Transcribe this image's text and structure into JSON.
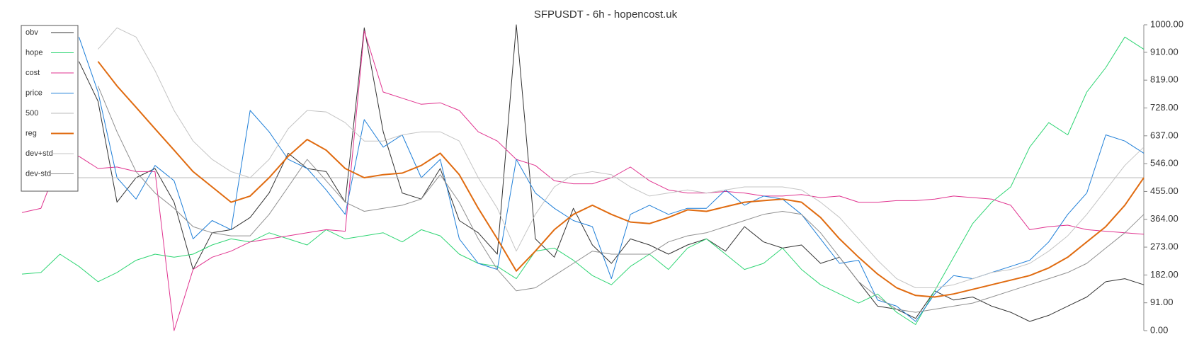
{
  "chart_data": {
    "type": "line",
    "title": "SFPUSDT - 6h - hopencost.uk",
    "ylim": [
      0,
      1000
    ],
    "yticks": [
      {
        "value": 0,
        "label": "0.00"
      },
      {
        "value": 91,
        "label": "91.00"
      },
      {
        "value": 182,
        "label": "182.00"
      },
      {
        "value": 273,
        "label": "273.00"
      },
      {
        "value": 364,
        "label": "364.00"
      },
      {
        "value": 455,
        "label": "455.00"
      },
      {
        "value": 546,
        "label": "546.00"
      },
      {
        "value": 637,
        "label": "637.00"
      },
      {
        "value": 728,
        "label": "728.00"
      },
      {
        "value": 819,
        "label": "819.00"
      },
      {
        "value": 910,
        "label": "910.00"
      },
      {
        "value": 1000,
        "label": "1000.00"
      }
    ],
    "y_axis_side": "right",
    "grid": false,
    "legend": "upper left",
    "series": [
      {
        "name": "obv",
        "color": "#333333",
        "width": 1,
        "values": [
          null,
          null,
          null,
          880,
          750,
          420,
          500,
          530,
          420,
          200,
          320,
          330,
          370,
          450,
          580,
          530,
          520,
          420,
          990,
          650,
          450,
          430,
          530,
          360,
          320,
          250,
          1000,
          300,
          240,
          400,
          280,
          220,
          300,
          280,
          250,
          280,
          300,
          260,
          340,
          290,
          270,
          280,
          220,
          240,
          160,
          80,
          70,
          40,
          130,
          100,
          110,
          80,
          60,
          30,
          50,
          80,
          110,
          160,
          170,
          150
        ]
      },
      {
        "name": "hope",
        "color": "#2ed573",
        "width": 1,
        "values": [
          185,
          190,
          250,
          210,
          160,
          190,
          230,
          250,
          240,
          250,
          280,
          300,
          290,
          320,
          300,
          280,
          330,
          300,
          310,
          320,
          290,
          330,
          310,
          250,
          220,
          210,
          170,
          260,
          270,
          230,
          180,
          150,
          210,
          250,
          200,
          270,
          300,
          250,
          200,
          220,
          270,
          200,
          150,
          120,
          90,
          120,
          60,
          20,
          130,
          240,
          350,
          420,
          470,
          600,
          680,
          640,
          780,
          860,
          960,
          920
        ]
      },
      {
        "name": "cost",
        "color": "#e0338f",
        "width": 1,
        "values": [
          386,
          400,
          560,
          570,
          530,
          535,
          520,
          520,
          0,
          200,
          240,
          260,
          290,
          300,
          310,
          320,
          330,
          325,
          980,
          780,
          760,
          740,
          745,
          720,
          650,
          620,
          560,
          540,
          490,
          480,
          480,
          500,
          535,
          490,
          460,
          450,
          450,
          455,
          450,
          440,
          440,
          445,
          435,
          440,
          420,
          420,
          425,
          425,
          430,
          440,
          435,
          430,
          410,
          330,
          340,
          345,
          330,
          325,
          320,
          315
        ]
      },
      {
        "name": "price",
        "color": "#1f7fd8",
        "width": 1,
        "values": [
          null,
          null,
          null,
          960,
          780,
          500,
          430,
          540,
          490,
          300,
          360,
          330,
          720,
          650,
          560,
          530,
          460,
          380,
          690,
          600,
          640,
          500,
          560,
          300,
          220,
          200,
          560,
          450,
          400,
          360,
          340,
          170,
          380,
          410,
          380,
          400,
          400,
          460,
          410,
          440,
          430,
          380,
          300,
          220,
          230,
          100,
          80,
          30,
          120,
          180,
          170,
          190,
          210,
          230,
          290,
          380,
          450,
          640,
          620,
          580
        ]
      },
      {
        "name": "500",
        "color": "#bbbbbb",
        "width": 1,
        "values": [
          500,
          500,
          500,
          500,
          500,
          500,
          500,
          500,
          500,
          500,
          500,
          500,
          500,
          500,
          500,
          500,
          500,
          500,
          500,
          500,
          500,
          500,
          500,
          500,
          500,
          500,
          500,
          500,
          500,
          500,
          500,
          500,
          500,
          500,
          500,
          500,
          500,
          500,
          500,
          500,
          500,
          500,
          500,
          500,
          500,
          500,
          500,
          500,
          500,
          500,
          500,
          500,
          500,
          500,
          500,
          500,
          500,
          500,
          500,
          500
        ]
      },
      {
        "name": "reg",
        "color": "#e06b10",
        "width": 2,
        "values": [
          null,
          null,
          null,
          null,
          880,
          800,
          730,
          660,
          590,
          520,
          470,
          420,
          440,
          500,
          570,
          625,
          590,
          530,
          500,
          510,
          515,
          540,
          580,
          510,
          400,
          300,
          195,
          260,
          330,
          380,
          410,
          380,
          355,
          350,
          370,
          395,
          390,
          405,
          420,
          425,
          430,
          420,
          370,
          300,
          240,
          185,
          140,
          115,
          110,
          120,
          135,
          150,
          165,
          180,
          205,
          240,
          290,
          340,
          410,
          500
        ]
      },
      {
        "name": "dev+std",
        "color": "#c4c4c4",
        "width": 1,
        "values": [
          null,
          null,
          null,
          null,
          920,
          990,
          960,
          850,
          720,
          620,
          560,
          520,
          500,
          560,
          660,
          720,
          715,
          680,
          620,
          620,
          640,
          650,
          650,
          620,
          500,
          400,
          260,
          380,
          470,
          510,
          520,
          510,
          470,
          440,
          450,
          460,
          450,
          460,
          470,
          470,
          470,
          460,
          420,
          370,
          300,
          230,
          170,
          140,
          140,
          150,
          170,
          190,
          200,
          220,
          260,
          310,
          380,
          460,
          540,
          600
        ]
      },
      {
        "name": "dev-std",
        "color": "#909090",
        "width": 1,
        "values": [
          null,
          null,
          null,
          null,
          800,
          650,
          520,
          450,
          400,
          340,
          320,
          310,
          310,
          380,
          470,
          560,
          490,
          420,
          390,
          400,
          410,
          430,
          510,
          420,
          300,
          200,
          130,
          140,
          180,
          220,
          260,
          250,
          250,
          250,
          290,
          310,
          320,
          340,
          360,
          380,
          390,
          380,
          320,
          240,
          160,
          110,
          70,
          60,
          70,
          80,
          90,
          110,
          130,
          150,
          170,
          190,
          220,
          270,
          320,
          380
        ]
      }
    ]
  }
}
